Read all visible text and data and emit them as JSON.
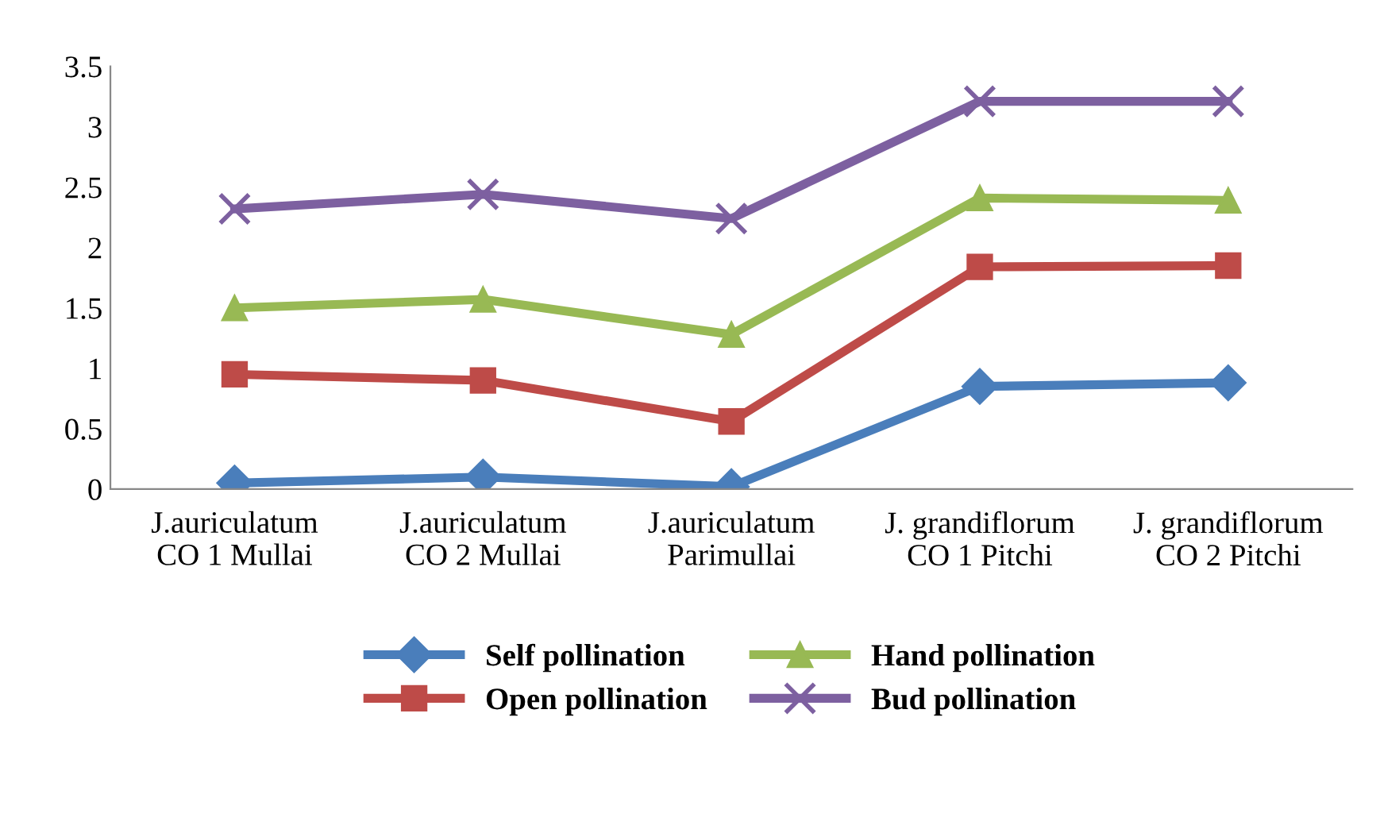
{
  "chart_data": {
    "type": "line",
    "categories": [
      "J.auriculatum\nCO 1 Mullai",
      "J.auriculatum\nCO 2 Mullai",
      "J.auriculatum\nParimullai",
      "J. grandiflorum\nCO 1 Pitchi",
      "J. grandiflorum\nCO 2 Pitchi"
    ],
    "series": [
      {
        "name": "Self pollination",
        "color": "#4a7ebb",
        "marker": "diamond",
        "values": [
          0.05,
          0.1,
          0.02,
          0.85,
          0.88
        ]
      },
      {
        "name": "Open pollination",
        "color": "#be4b48",
        "marker": "square",
        "values": [
          0.95,
          0.9,
          0.56,
          1.84,
          1.85
        ]
      },
      {
        "name": "Hand pollination",
        "color": "#98b954",
        "marker": "triangle",
        "values": [
          1.5,
          1.57,
          1.28,
          2.41,
          2.39
        ]
      },
      {
        "name": "Bud pollination",
        "color": "#7d60a0",
        "marker": "cross",
        "values": [
          2.32,
          2.44,
          2.24,
          3.21,
          3.21
        ]
      }
    ],
    "ylim": [
      0,
      3.5
    ],
    "yticks": [
      0,
      0.5,
      1,
      1.5,
      2,
      2.5,
      3,
      3.5
    ],
    "grid": false,
    "legend": "bottom",
    "line_style": "solid"
  }
}
